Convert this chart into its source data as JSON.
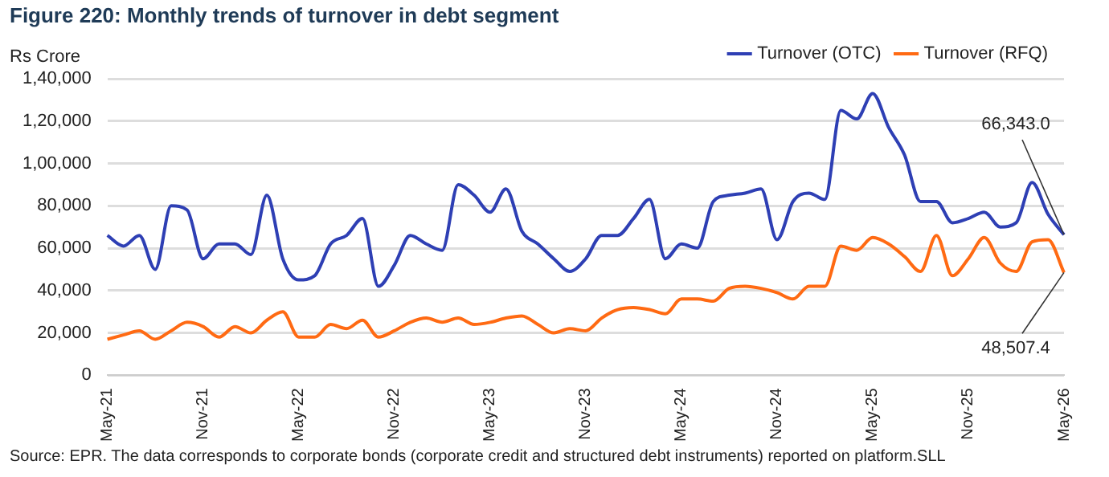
{
  "chart_data": {
    "type": "line",
    "title": "Figure 220: Monthly trends of turnover in debt segment",
    "ylabel": "Rs Crore",
    "categories": [
      "May-21",
      null,
      null,
      null,
      null,
      null,
      "Nov-21",
      null,
      null,
      null,
      null,
      null,
      "May-22",
      null,
      null,
      null,
      null,
      null,
      "Nov-22",
      null,
      null,
      null,
      null,
      null,
      "May-23",
      null,
      null,
      null,
      null,
      null,
      "Nov-23",
      null,
      null,
      null,
      null,
      null,
      "May-24",
      null,
      null,
      null,
      null,
      null,
      "Nov-24",
      null,
      null,
      null,
      null,
      null,
      "May-25",
      null,
      null,
      null,
      null,
      null,
      "Nov-25",
      null,
      null,
      null,
      null,
      null,
      "May-26"
    ],
    "series": [
      {
        "name": "Turnover (OTC)",
        "color": "#2e3fb4",
        "values": [
          66000,
          61000,
          66000,
          50000,
          80000,
          78000,
          55000,
          62000,
          62000,
          57000,
          85000,
          55000,
          45000,
          47000,
          62000,
          66000,
          74000,
          42000,
          52000,
          66000,
          62000,
          59000,
          90000,
          85000,
          77000,
          88000,
          68000,
          62000,
          55000,
          49000,
          55000,
          66000,
          66000,
          74000,
          83000,
          55000,
          62000,
          60000,
          82000,
          85000,
          86000,
          88000,
          64000,
          82000,
          86000,
          83000,
          125000,
          121000,
          133000,
          117000,
          104000,
          82000,
          82000,
          72000,
          74000,
          77000,
          70000,
          72000,
          91000,
          76000,
          66343.0
        ]
      },
      {
        "name": "Turnover (RFQ)",
        "color": "#ff6a13",
        "values": [
          17000,
          19000,
          21000,
          17000,
          21000,
          25000,
          23000,
          18000,
          23000,
          20000,
          26000,
          30000,
          18000,
          18000,
          24000,
          22000,
          26000,
          18000,
          21000,
          25000,
          27000,
          25000,
          27000,
          24000,
          25000,
          27000,
          28000,
          24000,
          20000,
          22000,
          21000,
          27000,
          31000,
          32000,
          31000,
          29000,
          36000,
          36000,
          35000,
          41000,
          42000,
          41000,
          39000,
          36000,
          42000,
          42000,
          61000,
          59000,
          65000,
          62000,
          56000,
          49000,
          66000,
          47000,
          55000,
          65000,
          53000,
          49000,
          63000,
          64000,
          48507.4
        ]
      }
    ],
    "ylim": [
      0,
      140000
    ],
    "yticks": [
      0,
      {
        "value": 20000,
        "label": "20,000"
      },
      {
        "value": 40000,
        "label": "40,000"
      },
      {
        "value": 60000,
        "label": "60,000"
      },
      {
        "value": 80000,
        "label": "80,000"
      },
      {
        "value": 100000,
        "label": "1,00,000"
      },
      {
        "value": 120000,
        "label": "1,20,000"
      },
      {
        "value": 140000,
        "label": "1,40,000"
      }
    ],
    "grid": "y",
    "legend": "top",
    "marker": "none",
    "line_style": "solid",
    "annotations": [
      {
        "text": "66,343.0",
        "x": "May-26",
        "y": 66343.0
      },
      {
        "text": "48,507.4",
        "x": "May-26",
        "y": 48507.4
      },
      "Source: EPR. The data corresponds to corporate bonds (corporate credit and structured debt instruments) reported on platform.SLL"
    ]
  }
}
